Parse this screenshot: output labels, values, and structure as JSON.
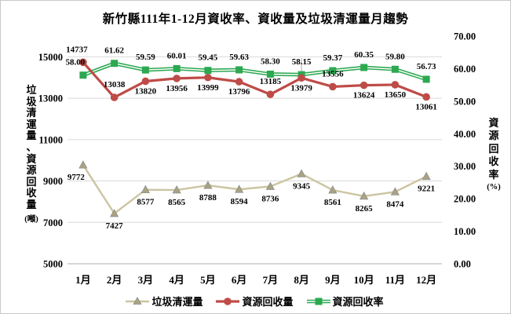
{
  "chart_data": {
    "type": "line",
    "title": "新竹縣111年1-12月資收率、資收量及垃圾清運量月趨勢",
    "categories": [
      "1月",
      "2月",
      "3月",
      "4月",
      "5月",
      "6月",
      "7月",
      "8月",
      "9月",
      "10月",
      "11月",
      "12月"
    ],
    "series": [
      {
        "name": "垃圾清運量",
        "axis": "left",
        "marker": "triangle",
        "color": "#CBC5A1",
        "marker_color": "#A9A383",
        "values": [
          9772,
          7427,
          8577,
          8565,
          8788,
          8594,
          8736,
          9345,
          8561,
          8265,
          8474,
          9221
        ]
      },
      {
        "name": "資源回收量",
        "axis": "left",
        "marker": "circle",
        "color": "#BF4B47",
        "marker_color": "#BF4B47",
        "values": [
          14737,
          13038,
          13820,
          13956,
          13999,
          13796,
          13185,
          13979,
          13556,
          13624,
          13650,
          13061
        ]
      },
      {
        "name": "資源回收率",
        "axis": "right",
        "marker": "square",
        "color": "#2CA851",
        "marker_color": "#2CA851",
        "values": [
          58.0,
          61.62,
          59.59,
          60.01,
          59.45,
          59.63,
          58.3,
          58.15,
          59.37,
          60.35,
          59.8,
          56.73
        ]
      }
    ],
    "left_axis": {
      "title": "垃圾清運量、資源回收量",
      "unit": "(噸)",
      "min": 5000,
      "max": 16000,
      "ticks": [
        5000,
        7000,
        9000,
        11000,
        13000,
        15000
      ]
    },
    "right_axis": {
      "title": "資源回收率",
      "unit": "(%)",
      "min": 0,
      "max": 70,
      "decimals": 2,
      "ticks": [
        0,
        10,
        20,
        30,
        40,
        50,
        60,
        70
      ]
    },
    "legend_position": "bottom",
    "grid": true,
    "colors": {
      "gridline": "#D9D9D9",
      "axis_line": "#BFBFBF",
      "leader": "#A0A0A0"
    }
  }
}
